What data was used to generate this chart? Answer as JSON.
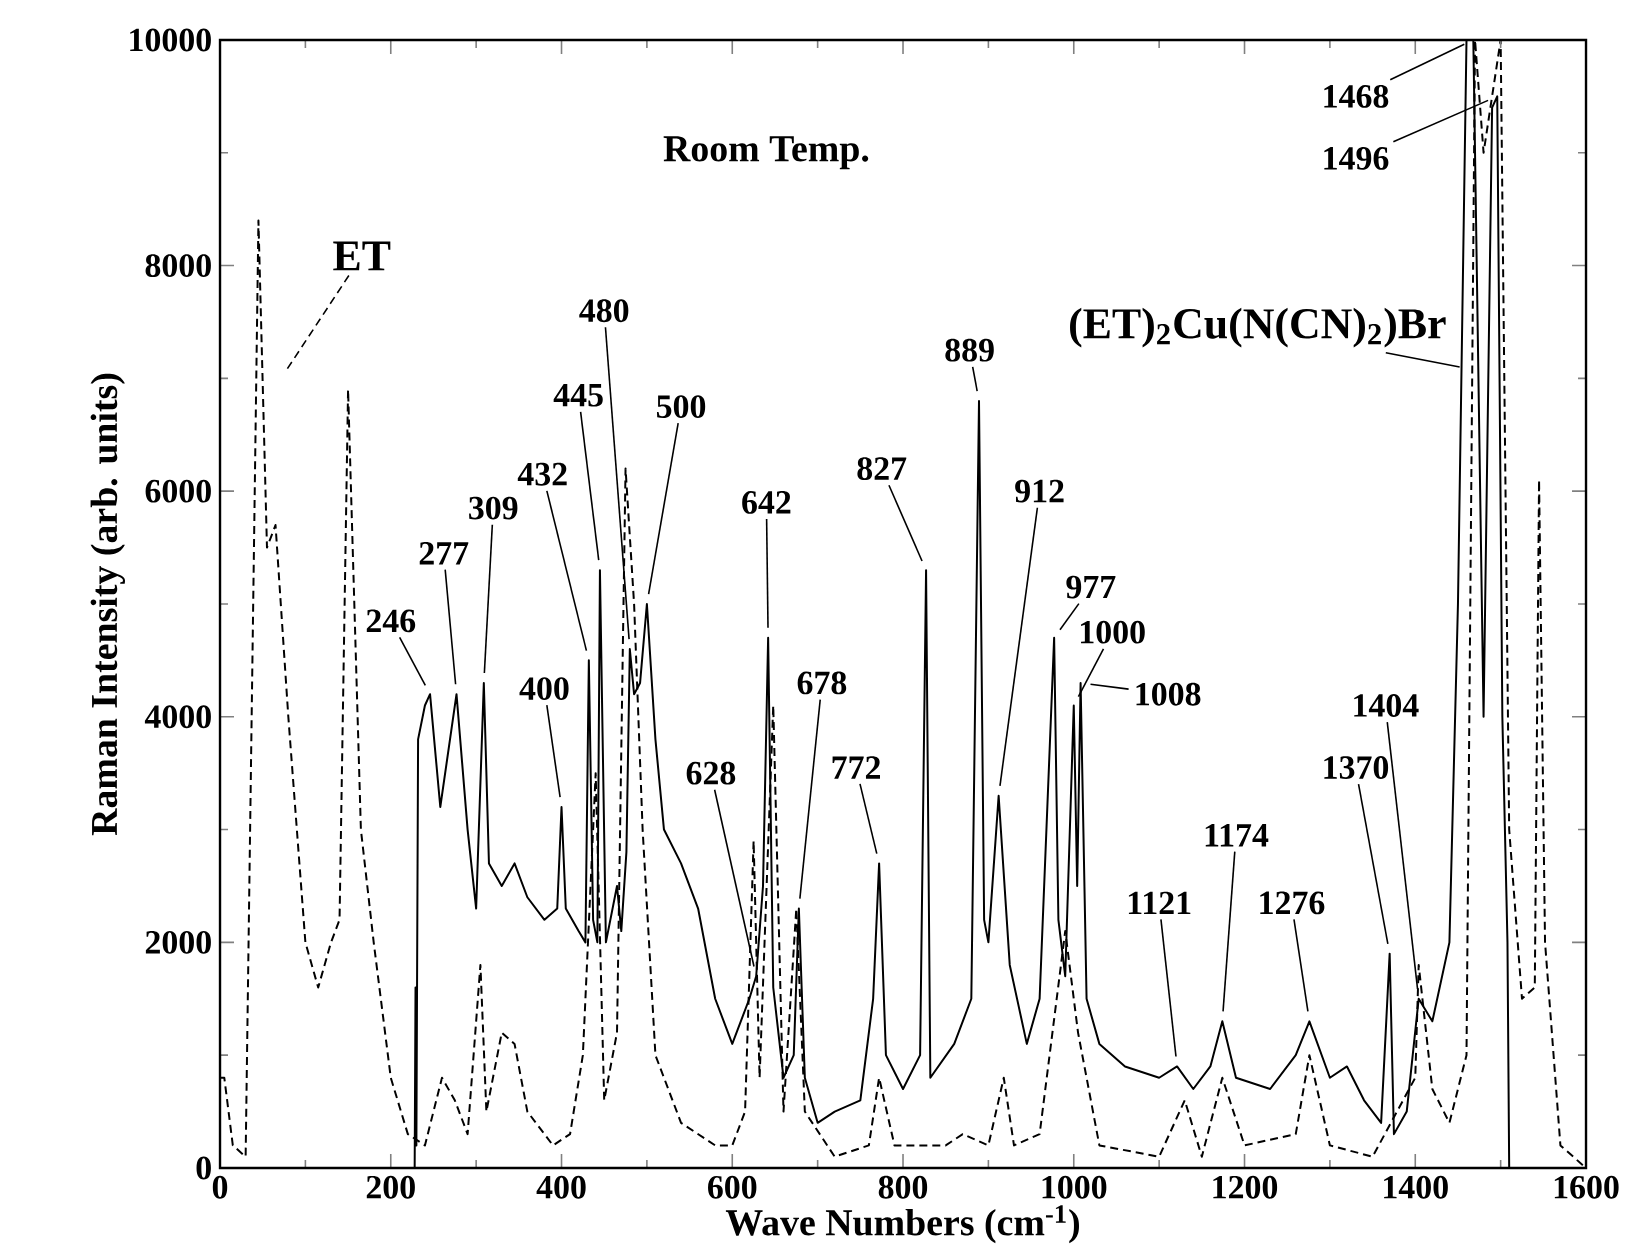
{
  "chart_data": {
    "type": "line",
    "xlabel": "Wave Numbers (cm$^{-1}$)",
    "ylabel": "Raman Intensity (arb. units)",
    "xlim": [
      0,
      1600
    ],
    "xticks": [
      0,
      200,
      400,
      600,
      800,
      1000,
      1200,
      1400,
      1600
    ],
    "ylim": [
      0,
      10000
    ],
    "yticks": [
      0,
      2000,
      4000,
      6000,
      8000,
      10000
    ],
    "series": [
      {
        "name": "(ET)$_{2}$Cu(N(CN)$_{2}$)Br",
        "color": "#000000",
        "line_style": "solid",
        "x": [
          228,
          229,
          230,
          232,
          240,
          246,
          258,
          277,
          290,
          300,
          309,
          315,
          330,
          345,
          360,
          380,
          395,
          400,
          405,
          420,
          428,
          432,
          437,
          442,
          445,
          452,
          465,
          470,
          476,
          480,
          485,
          492,
          500,
          510,
          520,
          540,
          560,
          580,
          600,
          620,
          628,
          636,
          642,
          648,
          660,
          672,
          678,
          685,
          700,
          720,
          750,
          765,
          772,
          780,
          800,
          820,
          827,
          832,
          860,
          880,
          889,
          895,
          900,
          912,
          925,
          945,
          960,
          977,
          982,
          990,
          1000,
          1004,
          1008,
          1015,
          1030,
          1060,
          1100,
          1121,
          1140,
          1160,
          1174,
          1190,
          1230,
          1260,
          1276,
          1300,
          1320,
          1340,
          1360,
          1370,
          1375,
          1390,
          1404,
          1420,
          1440,
          1450,
          1460,
          1468,
          1476,
          1480,
          1490,
          1496,
          1502,
          1508,
          1510
        ],
        "values": [
          0,
          1600,
          200,
          3800,
          4100,
          4200,
          3200,
          4200,
          3000,
          2300,
          4300,
          2700,
          2500,
          2700,
          2400,
          2200,
          2300,
          3200,
          2300,
          2100,
          2000,
          4500,
          2200,
          2000,
          5300,
          2000,
          2500,
          2100,
          2800,
          4600,
          4200,
          4300,
          5000,
          3800,
          3000,
          2700,
          2300,
          1500,
          1100,
          1500,
          1700,
          2500,
          4700,
          1600,
          800,
          1000,
          2300,
          800,
          400,
          500,
          600,
          1500,
          2700,
          1000,
          700,
          1000,
          5300,
          800,
          1100,
          1500,
          6800,
          2200,
          2000,
          3300,
          1800,
          1100,
          1500,
          4700,
          2200,
          1700,
          4100,
          2500,
          4300,
          1500,
          1100,
          900,
          800,
          900,
          700,
          900,
          1300,
          800,
          700,
          1000,
          1300,
          800,
          900,
          600,
          400,
          1900,
          300,
          500,
          1500,
          1300,
          2000,
          5000,
          10000,
          10000,
          6000,
          4000,
          9400,
          9500,
          4000,
          2000,
          0
        ]
      },
      {
        "name": "ET",
        "color": "#000000",
        "line_style": "dashed",
        "x": [
          0,
          5,
          15,
          30,
          45,
          55,
          65,
          80,
          100,
          115,
          130,
          140,
          150,
          165,
          180,
          200,
          220,
          240,
          260,
          275,
          290,
          305,
          312,
          330,
          345,
          360,
          390,
          410,
          425,
          440,
          450,
          465,
          475,
          485,
          495,
          510,
          540,
          580,
          600,
          615,
          625,
          632,
          648,
          660,
          675,
          685,
          720,
          760,
          772,
          790,
          850,
          870,
          900,
          918,
          930,
          960,
          990,
          1005,
          1030,
          1100,
          1130,
          1150,
          1174,
          1200,
          1260,
          1276,
          1300,
          1350,
          1400,
          1404,
          1420,
          1440,
          1460,
          1470,
          1480,
          1490,
          1500,
          1510,
          1525,
          1540,
          1545,
          1552,
          1570,
          1600
        ],
        "values": [
          800,
          800,
          200,
          100,
          8400,
          5500,
          5700,
          4000,
          2000,
          1600,
          2000,
          2200,
          6900,
          3000,
          2000,
          800,
          300,
          200,
          800,
          600,
          300,
          1800,
          500,
          1200,
          1100,
          500,
          200,
          300,
          1000,
          3500,
          600,
          1200,
          6200,
          5000,
          3000,
          1000,
          400,
          200,
          200,
          500,
          2900,
          800,
          4100,
          500,
          2300,
          500,
          100,
          200,
          800,
          200,
          200,
          300,
          200,
          800,
          200,
          300,
          2100,
          1200,
          200,
          100,
          600,
          100,
          800,
          200,
          300,
          1000,
          200,
          100,
          800,
          1800,
          700,
          400,
          1000,
          10000,
          9000,
          9500,
          10000,
          3000,
          1500,
          1600,
          6100,
          2000,
          200,
          0
        ]
      }
    ],
    "annotations": [
      "Room Temp.",
      {
        "text": "246",
        "x": 246,
        "y": 4200
      },
      {
        "text": "277",
        "x": 277,
        "y": 4200
      },
      {
        "text": "309",
        "x": 309,
        "y": 4300
      },
      {
        "text": "400",
        "x": 400,
        "y": 3200
      },
      {
        "text": "432",
        "x": 432,
        "y": 4500
      },
      {
        "text": "445",
        "x": 445,
        "y": 5300
      },
      {
        "text": "480",
        "x": 480,
        "y": 4600
      },
      {
        "text": "500",
        "x": 500,
        "y": 5000
      },
      {
        "text": "628",
        "x": 628,
        "y": 1700
      },
      {
        "text": "642",
        "x": 642,
        "y": 4700
      },
      {
        "text": "678",
        "x": 678,
        "y": 2300
      },
      {
        "text": "772",
        "x": 772,
        "y": 2700
      },
      {
        "text": "827",
        "x": 827,
        "y": 5300
      },
      {
        "text": "889",
        "x": 889,
        "y": 6800
      },
      {
        "text": "912",
        "x": 912,
        "y": 3300
      },
      {
        "text": "977",
        "x": 977,
        "y": 4700
      },
      {
        "text": "1000",
        "x": 1000,
        "y": 4100
      },
      {
        "text": "1008",
        "x": 1008,
        "y": 4300
      },
      {
        "text": "1121",
        "x": 1121,
        "y": 900
      },
      {
        "text": "1174",
        "x": 1174,
        "y": 1300
      },
      {
        "text": "1276",
        "x": 1276,
        "y": 1300
      },
      {
        "text": "1370",
        "x": 1370,
        "y": 1900
      },
      {
        "text": "1404",
        "x": 1404,
        "y": 1500
      },
      {
        "text": "1468",
        "x": 1468,
        "y": 10000
      },
      {
        "text": "1496",
        "x": 1496,
        "y": 9500
      }
    ]
  }
}
